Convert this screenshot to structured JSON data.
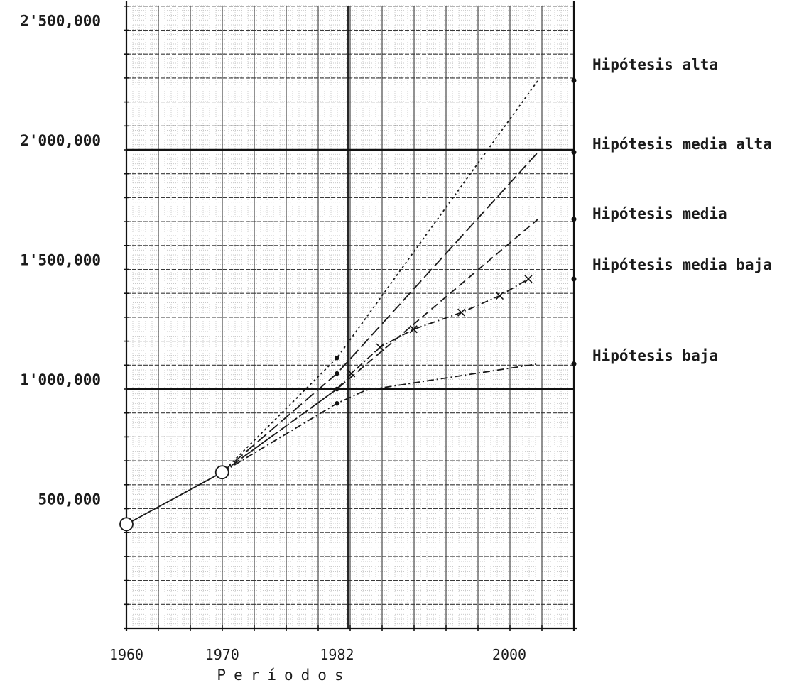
{
  "chart_data": {
    "type": "line",
    "title": "",
    "xlabel": "Períodos",
    "ylabel": "",
    "grid": true,
    "x_ticks": [
      {
        "value": 1960,
        "label": "1960"
      },
      {
        "value": 1970,
        "label": "1970"
      },
      {
        "value": 1982,
        "label": "1982"
      },
      {
        "value": 2000,
        "label": "2000"
      }
    ],
    "y_ticks": [
      {
        "value": 500000,
        "label": "500,000"
      },
      {
        "value": 1000000,
        "label": "1'000,000"
      },
      {
        "value": 1500000,
        "label": "1'500,000"
      },
      {
        "value": 2000000,
        "label": "2'000,000"
      },
      {
        "value": 2500000,
        "label": "2'500,000"
      }
    ],
    "xlim": [
      1960,
      2003
    ],
    "ylim": [
      0,
      2600000
    ],
    "history": [
      {
        "x": 1960,
        "y": 435000
      },
      {
        "x": 1970,
        "y": 652000
      }
    ],
    "series": [
      {
        "name": "Hipótesis alta",
        "dash": "3,4",
        "points": [
          {
            "x": 1970,
            "y": 652000
          },
          {
            "x": 1982,
            "y": 1130000
          },
          {
            "x": 2003,
            "y": 2290000
          }
        ]
      },
      {
        "name": "Hipótesis media alta",
        "dash": "16,6",
        "points": [
          {
            "x": 1970,
            "y": 652000
          },
          {
            "x": 1982,
            "y": 1065000
          },
          {
            "x": 2003,
            "y": 1990000
          }
        ]
      },
      {
        "name": "Hipótesis media",
        "dash": "11,6",
        "points": [
          {
            "x": 1970,
            "y": 652000
          },
          {
            "x": 1982,
            "y": 1000000
          },
          {
            "x": 2003,
            "y": 1710000
          }
        ]
      },
      {
        "name": "Hipótesis media baja",
        "dash": "10,4,2,4",
        "marker": "x",
        "points": [
          {
            "x": 1970,
            "y": 652000
          },
          {
            "x": 1982,
            "y": 1000000
          },
          {
            "x": 1983.5,
            "y": 1065000
          },
          {
            "x": 1986.5,
            "y": 1175000
          },
          {
            "x": 1990,
            "y": 1250000
          },
          {
            "x": 1995,
            "y": 1320000
          },
          {
            "x": 1999,
            "y": 1390000
          },
          {
            "x": 2002,
            "y": 1460000
          }
        ]
      },
      {
        "name": "Hipótesis baja",
        "dash": "10,4,2,4",
        "points": [
          {
            "x": 1970,
            "y": 652000
          },
          {
            "x": 1982,
            "y": 940000
          },
          {
            "x": 1985,
            "y": 995000
          },
          {
            "x": 2003,
            "y": 1105000
          }
        ]
      }
    ]
  }
}
